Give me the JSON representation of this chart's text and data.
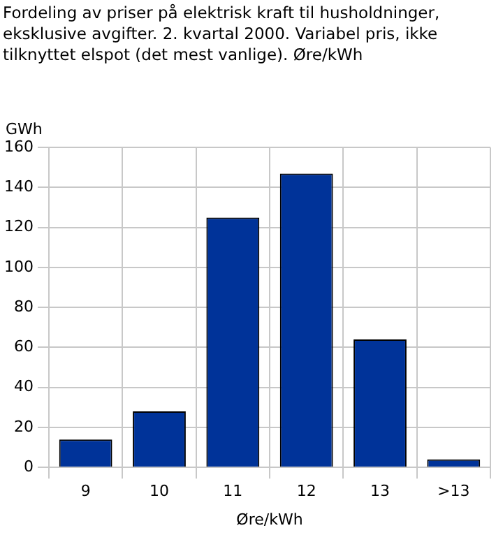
{
  "chart_data": {
    "type": "bar",
    "title": "Fordeling av priser på elektrisk kraft til husholdninger, eksklusive avgifter. 2. kvartal 2000. Variabel pris, ikke tilknyttet elspot (det mest vanlige). Øre/kWh",
    "ylabel": "GWh",
    "xlabel": "Øre/kWh",
    "categories": [
      "9",
      "10",
      "11",
      "12",
      "13",
      ">13"
    ],
    "values": [
      14,
      28,
      125,
      147,
      64,
      4
    ],
    "color": "#003399",
    "ylim": [
      0,
      160
    ],
    "yticks": [
      0,
      20,
      40,
      60,
      80,
      100,
      120,
      140,
      160
    ],
    "grid": true,
    "legend": false
  }
}
